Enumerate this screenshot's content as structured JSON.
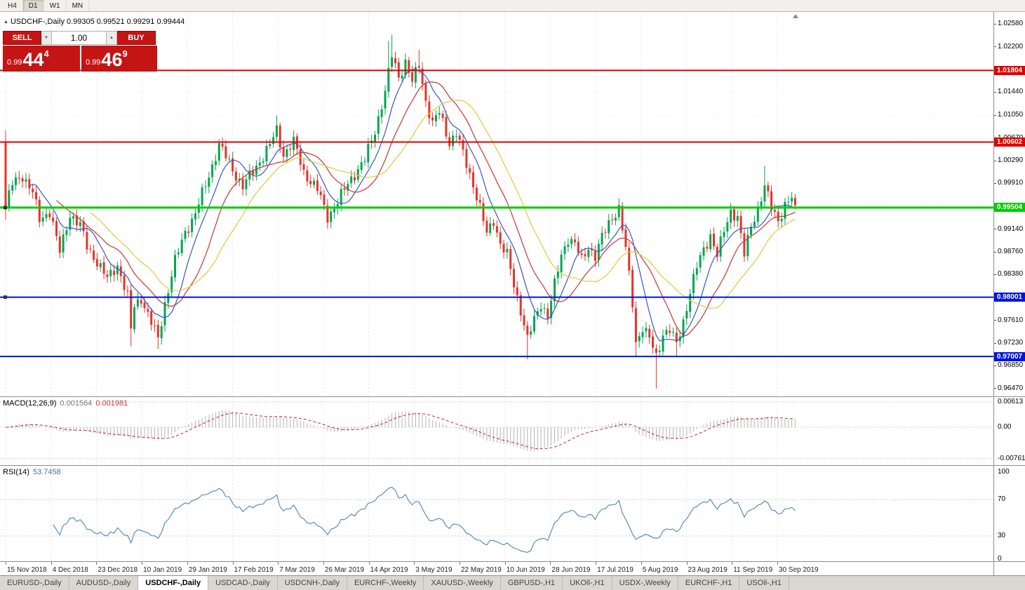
{
  "toolbar": {
    "periods": [
      {
        "label": "H4",
        "active": false
      },
      {
        "label": "D1",
        "active": true
      },
      {
        "label": "W1",
        "active": false
      },
      {
        "label": "MN",
        "active": false
      }
    ]
  },
  "icons": {
    "symbol_arrow": "▲",
    "lot_down": "▼",
    "lot_up": "▲"
  },
  "chart": {
    "symbol_info": "USDCHF-,Daily 0.99305 0.99521 0.99291 0.99444",
    "trade_panel": {
      "sell_label": "SELL",
      "buy_label": "BUY",
      "lot_size": "1.00",
      "sell_price_prefix": "0.99",
      "sell_price_big": "44",
      "sell_price_sup": "4",
      "buy_price_prefix": "0.99",
      "buy_price_big": "46",
      "buy_price_sup": "9",
      "panel_color": "#c41414"
    },
    "price_axis": [
      "1.02580",
      "1.02200",
      "1.01820",
      "1.01440",
      "1.01050",
      "1.00670",
      "1.00290",
      "0.99910",
      "0.99530",
      "0.99140",
      "0.98760",
      "0.98380",
      "0.98000",
      "0.97610",
      "0.97230",
      "0.96850",
      "0.96470"
    ]
  },
  "macd_panel": {
    "label": "MACD(12,26,9)",
    "value_main": "0.001564",
    "value_signal": "0.001981",
    "axis": [
      "0.00613",
      "0.00",
      "-0.00761"
    ]
  },
  "rsi_panel": {
    "label": "RSI(14)",
    "value": "53.7458",
    "axis": [
      "100",
      "70",
      "30",
      "0"
    ]
  },
  "date_axis": {
    "labels": [
      "15 Nov 2018",
      "4 Dec 2018",
      "23 Dec 2018",
      "10 Jan 2019",
      "29 Jan 2019",
      "17 Feb 2019",
      "7 Mar 2019",
      "26 Mar 2019",
      "14 Apr 2019",
      "3 May 2019",
      "22 May 2019",
      "10 Jun 2019",
      "28 Jun 2019",
      "17 Jul 2019",
      "5 Aug 2019",
      "23 Aug 2019",
      "11 Sep 2019",
      "30 Sep 2019"
    ]
  },
  "tabs": [
    {
      "label": "EURUSD-,Daily",
      "active": false
    },
    {
      "label": "AUDUSD-,Daily",
      "active": false
    },
    {
      "label": "USDCHF-,Daily",
      "active": true
    },
    {
      "label": "USDCAD-,Daily",
      "active": false
    },
    {
      "label": "USDCNH-,Daily",
      "active": false
    },
    {
      "label": "EURCHF-,Weekly",
      "active": false
    },
    {
      "label": "XAUUSD-,Weekly",
      "active": false
    },
    {
      "label": "GBPUSD-,H1",
      "active": false
    },
    {
      "label": "UKOil-,H1",
      "active": false
    },
    {
      "label": "USDX-,Weekly",
      "active": false
    },
    {
      "label": "EURCHF-,H1",
      "active": false
    },
    {
      "label": "USOil-,H1",
      "active": false
    }
  ],
  "chart_data": {
    "type": "candlestick",
    "symbol": "USDCHF",
    "timeframe": "Daily",
    "current_ohlc": {
      "open": 0.99305,
      "high": 0.99521,
      "low": 0.99291,
      "close": 0.99444
    },
    "ylim": [
      0.963,
      1.027
    ],
    "x_tick_labels": [
      "15 Nov 2018",
      "4 Dec 2018",
      "23 Dec 2018",
      "10 Jan 2019",
      "29 Jan 2019",
      "17 Feb 2019",
      "7 Mar 2019",
      "26 Mar 2019",
      "14 Apr 2019",
      "3 May 2019",
      "22 May 2019",
      "10 Jun 2019",
      "28 Jun 2019",
      "17 Jul 2019",
      "5 Aug 2019",
      "23 Aug 2019",
      "11 Sep 2019",
      "30 Sep 2019"
    ],
    "num_candles": 234,
    "first_open": 1.006,
    "close_waypoints": [
      [
        0,
        0.995
      ],
      [
        2,
        0.999
      ],
      [
        5,
        1.0005
      ],
      [
        8,
        0.9975
      ],
      [
        10,
        0.993
      ],
      [
        13,
        0.9945
      ],
      [
        16,
        0.9875
      ],
      [
        19,
        0.994
      ],
      [
        22,
        0.992
      ],
      [
        24,
        0.9885
      ],
      [
        27,
        0.986
      ],
      [
        30,
        0.983
      ],
      [
        33,
        0.9855
      ],
      [
        36,
        0.98
      ],
      [
        37,
        0.9745
      ],
      [
        38,
        0.9785
      ],
      [
        40,
        0.98
      ],
      [
        42,
        0.977
      ],
      [
        45,
        0.973
      ],
      [
        47,
        0.979
      ],
      [
        50,
        0.986
      ],
      [
        53,
        0.991
      ],
      [
        56,
        0.994
      ],
      [
        60,
        1.0005
      ],
      [
        63,
        1.0055
      ],
      [
        66,
        1.0025
      ],
      [
        70,
        0.9985
      ],
      [
        74,
        1.002
      ],
      [
        78,
        1.0055
      ],
      [
        80,
        1.008
      ],
      [
        82,
        1.004
      ],
      [
        85,
        1.006
      ],
      [
        88,
        1.001
      ],
      [
        92,
        0.998
      ],
      [
        95,
        0.9935
      ],
      [
        98,
        0.996
      ],
      [
        102,
        1.0
      ],
      [
        106,
        1.003
      ],
      [
        109,
        1.008
      ],
      [
        112,
        1.0145
      ],
      [
        114,
        1.0205
      ],
      [
        116,
        1.017
      ],
      [
        118,
        1.0195
      ],
      [
        120,
        1.016
      ],
      [
        122,
        1.019
      ],
      [
        124,
        1.013
      ],
      [
        126,
        1.009
      ],
      [
        128,
        1.011
      ],
      [
        131,
        1.006
      ],
      [
        133,
        1.0075
      ],
      [
        135,
        1.004
      ],
      [
        138,
        0.999
      ],
      [
        140,
        0.995
      ],
      [
        142,
        0.9905
      ],
      [
        144,
        0.993
      ],
      [
        146,
        0.989
      ],
      [
        148,
        0.987
      ],
      [
        150,
        0.982
      ],
      [
        152,
        0.978
      ],
      [
        154,
        0.973
      ],
      [
        156,
        0.976
      ],
      [
        158,
        0.979
      ],
      [
        160,
        0.977
      ],
      [
        162,
        0.982
      ],
      [
        164,
        0.987
      ],
      [
        166,
        0.99
      ],
      [
        168,
        0.989
      ],
      [
        170,
        0.986
      ],
      [
        172,
        0.9885
      ],
      [
        174,
        0.987
      ],
      [
        176,
        0.99
      ],
      [
        179,
        0.9935
      ],
      [
        181,
        0.995
      ],
      [
        183,
        0.988
      ],
      [
        185,
        0.979
      ],
      [
        186,
        0.9725
      ],
      [
        188,
        0.975
      ],
      [
        190,
        0.973
      ],
      [
        192,
        0.97
      ],
      [
        194,
        0.974
      ],
      [
        196,
        0.9745
      ],
      [
        198,
        0.972
      ],
      [
        200,
        0.976
      ],
      [
        202,
        0.981
      ],
      [
        204,
        0.985
      ],
      [
        206,
        0.988
      ],
      [
        208,
        0.9905
      ],
      [
        210,
        0.987
      ],
      [
        212,
        0.991
      ],
      [
        214,
        0.9945
      ],
      [
        216,
        0.9935
      ],
      [
        218,
        0.987
      ],
      [
        220,
        0.992
      ],
      [
        222,
        0.995
      ],
      [
        224,
        0.9985
      ],
      [
        226,
        0.995
      ],
      [
        228,
        0.993
      ],
      [
        230,
        0.9955
      ],
      [
        232,
        0.9965
      ],
      [
        233,
        0.9944
      ]
    ],
    "wick_extremes": [
      {
        "i": 0,
        "high": 1.008,
        "low": 0.993
      },
      {
        "i": 37,
        "low": 0.9718
      },
      {
        "i": 45,
        "low": 0.9713
      },
      {
        "i": 80,
        "high": 1.0105
      },
      {
        "i": 113,
        "high": 1.023
      },
      {
        "i": 114,
        "high": 1.024
      },
      {
        "i": 122,
        "high": 1.0215
      },
      {
        "i": 154,
        "low": 0.9696
      },
      {
        "i": 186,
        "low": 0.97
      },
      {
        "i": 192,
        "low": 0.9647
      },
      {
        "i": 198,
        "low": 0.97
      },
      {
        "i": 224,
        "high": 1.002
      }
    ],
    "horizontal_lines": [
      {
        "label": "1.01804",
        "price": 1.01804,
        "color": "#e00000",
        "width": 2,
        "handle": false
      },
      {
        "label": "1.00602",
        "price": 1.00602,
        "color": "#e00000",
        "width": 2,
        "handle": false
      },
      {
        "label": "0.99504",
        "price": 0.99504,
        "color": "#00ce00",
        "width": 3,
        "handle": true
      },
      {
        "label": "0.98001",
        "price": 0.98001,
        "color": "#0014e0",
        "width": 2,
        "handle": true
      },
      {
        "label": "0.97007",
        "price": 0.97007,
        "color": "#0014e0",
        "width": 2,
        "handle": false
      }
    ],
    "moving_averages": [
      {
        "period": 8,
        "color": "#3a56c4"
      },
      {
        "period": 16,
        "color": "#c93434"
      },
      {
        "period": 26,
        "color": "#dfc93e"
      }
    ],
    "candle_colors": {
      "up": "#00a651",
      "down": "#e5342a"
    },
    "indicators": {
      "macd": {
        "params": [
          12,
          26,
          9
        ],
        "main_value": 0.001564,
        "signal_value": 0.001981,
        "axis_max": 0.00613,
        "axis_min": -0.00761,
        "histogram_color": "#b4b4b4",
        "signal_color": "#cc2222"
      },
      "rsi": {
        "period": 14,
        "value": 53.7458,
        "levels": [
          70,
          30
        ],
        "color": "#4f81bd",
        "axis": [
          100,
          70,
          30,
          0
        ]
      }
    }
  }
}
